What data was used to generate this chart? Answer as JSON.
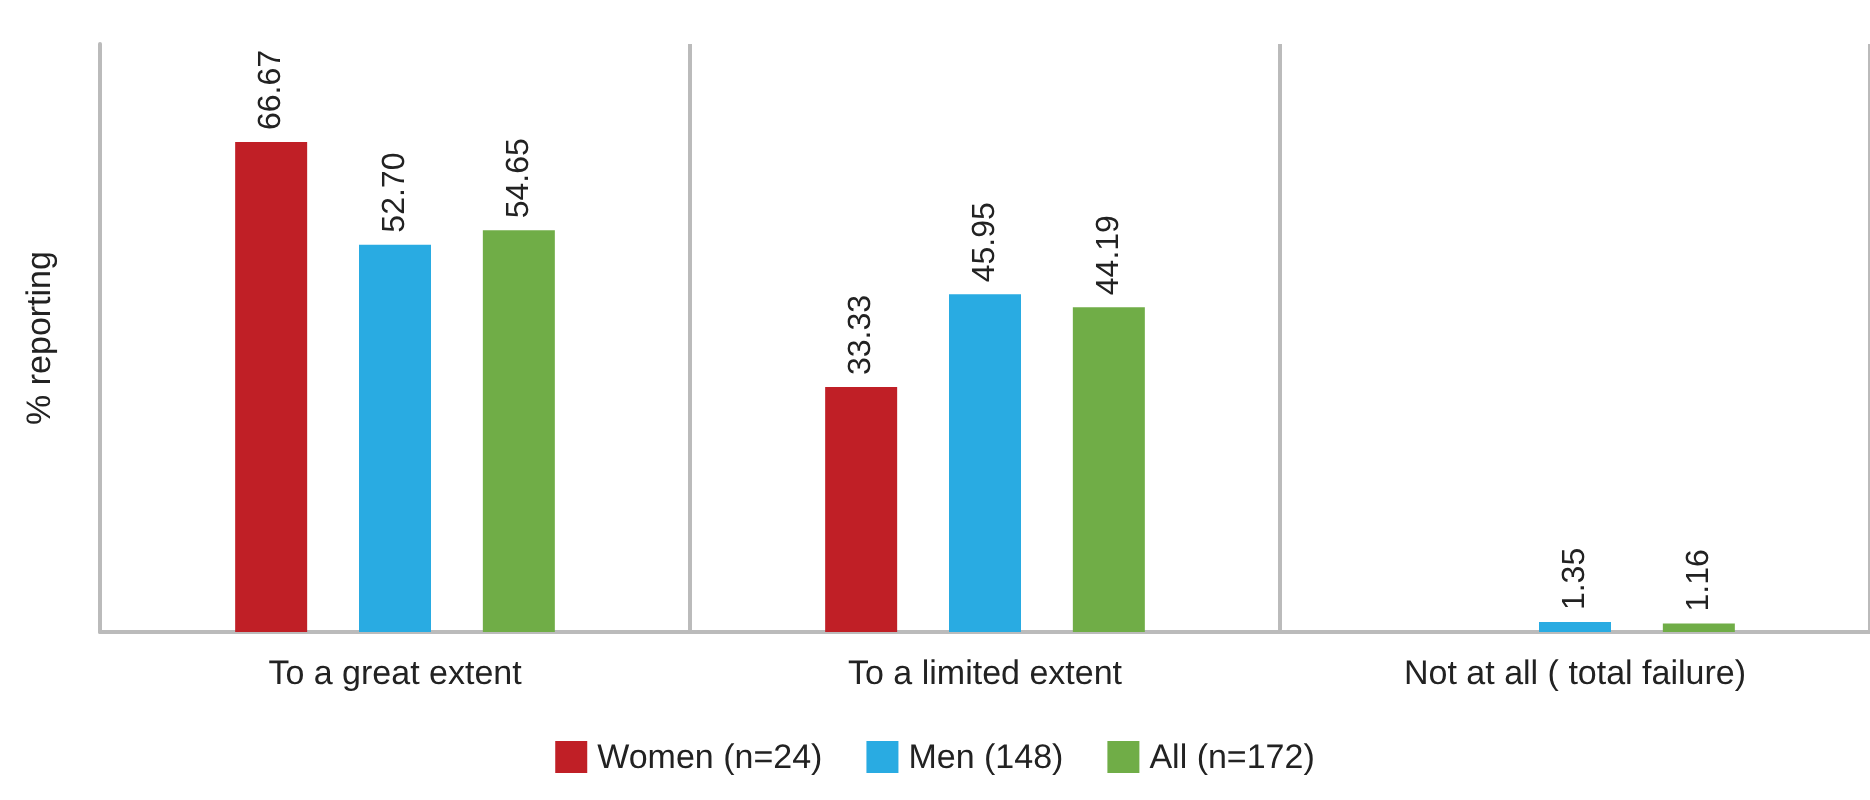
{
  "chart_data": {
    "type": "bar",
    "ylabel": "% reporting",
    "categories": [
      "To a great extent",
      "To a limited extent",
      "Not at all ( total failure)"
    ],
    "series": [
      {
        "name": "Women (n=24)",
        "color": "#c01f26",
        "values": [
          66.67,
          33.33,
          null
        ],
        "value_labels": [
          "66.67",
          "33.33",
          null
        ]
      },
      {
        "name": "Men (148)",
        "color": "#29abe2",
        "values": [
          52.7,
          45.95,
          1.35
        ],
        "value_labels": [
          "52.70",
          "45.95",
          "1.35"
        ]
      },
      {
        "name": "All (n=172)",
        "color": "#70ad47",
        "values": [
          54.65,
          44.19,
          1.16
        ],
        "value_labels": [
          "54.65",
          "44.19",
          "1.16"
        ]
      }
    ],
    "ylim": [
      0,
      80
    ],
    "tick_labels": "x",
    "grid": "x",
    "legend": "bottom"
  }
}
